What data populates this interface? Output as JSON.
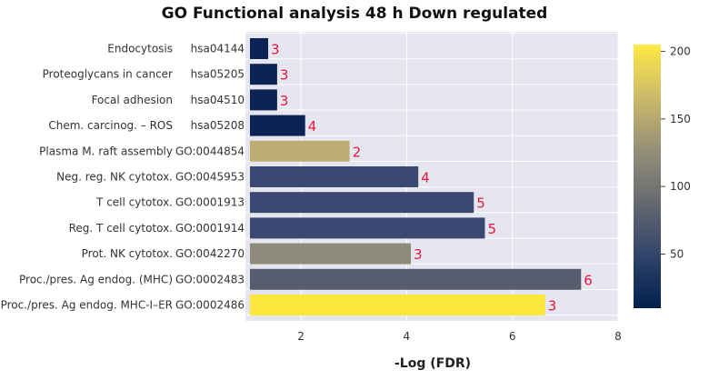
{
  "chart_data": {
    "type": "bar",
    "orientation": "horizontal",
    "title": "GO Functional analysis 48 h Down regulated",
    "xlabel": "-Log (FDR)",
    "xlim": [
      0.95,
      8
    ],
    "xticks": [
      2,
      4,
      6,
      8
    ],
    "categories": [
      {
        "name": "Endocytosis",
        "id": "hsa04144"
      },
      {
        "name": "Proteoglycans   in cancer",
        "id": "hsa05205"
      },
      {
        "name": "Focal   adhesion",
        "id": "hsa04510"
      },
      {
        "name": "Chem. carcinog. – ROS",
        "id": "hsa05208"
      },
      {
        "name": "Plasma M. raft assembly",
        "id": "GO:0044854"
      },
      {
        "name": "Neg. reg. NK cytotox.",
        "id": "GO:0045953"
      },
      {
        "name": "T cell cytotox.",
        "id": "GO:0001913"
      },
      {
        "name": "Reg. T cell cytotox.",
        "id": "GO:0001914"
      },
      {
        "name": "Prot. NK cytotox.",
        "id": "GO:0042270"
      },
      {
        "name": "Proc./pres. Ag endog. (MHC)",
        "id": "GO:0002483"
      },
      {
        "name": "Proc./pres. Ag endog. MHC-I–ER",
        "id": "GO:0002486"
      }
    ],
    "values": [
      1.38,
      1.55,
      1.55,
      2.08,
      2.92,
      4.22,
      5.27,
      5.48,
      4.08,
      7.3,
      6.62
    ],
    "bar_labels": [
      "3",
      "3",
      "3",
      "4",
      "2",
      "4",
      "5",
      "5",
      "3",
      "6",
      "3"
    ],
    "colors": [
      "#0d2356",
      "#0d2356",
      "#0d2356",
      "#0d2356",
      "#bcae72",
      "#3a4872",
      "#3a4872",
      "#3a4872",
      "#8f8b7c",
      "#575d6f",
      "#fbe73c"
    ],
    "colorbar": {
      "range": [
        10,
        205
      ],
      "ticks": [
        50,
        100,
        150,
        200
      ],
      "colors": [
        "#00204c",
        "#31446b",
        "#666970",
        "#958f78",
        "#cbba69",
        "#ffe945"
      ]
    },
    "grid": true,
    "legend": "colorbar-right"
  }
}
